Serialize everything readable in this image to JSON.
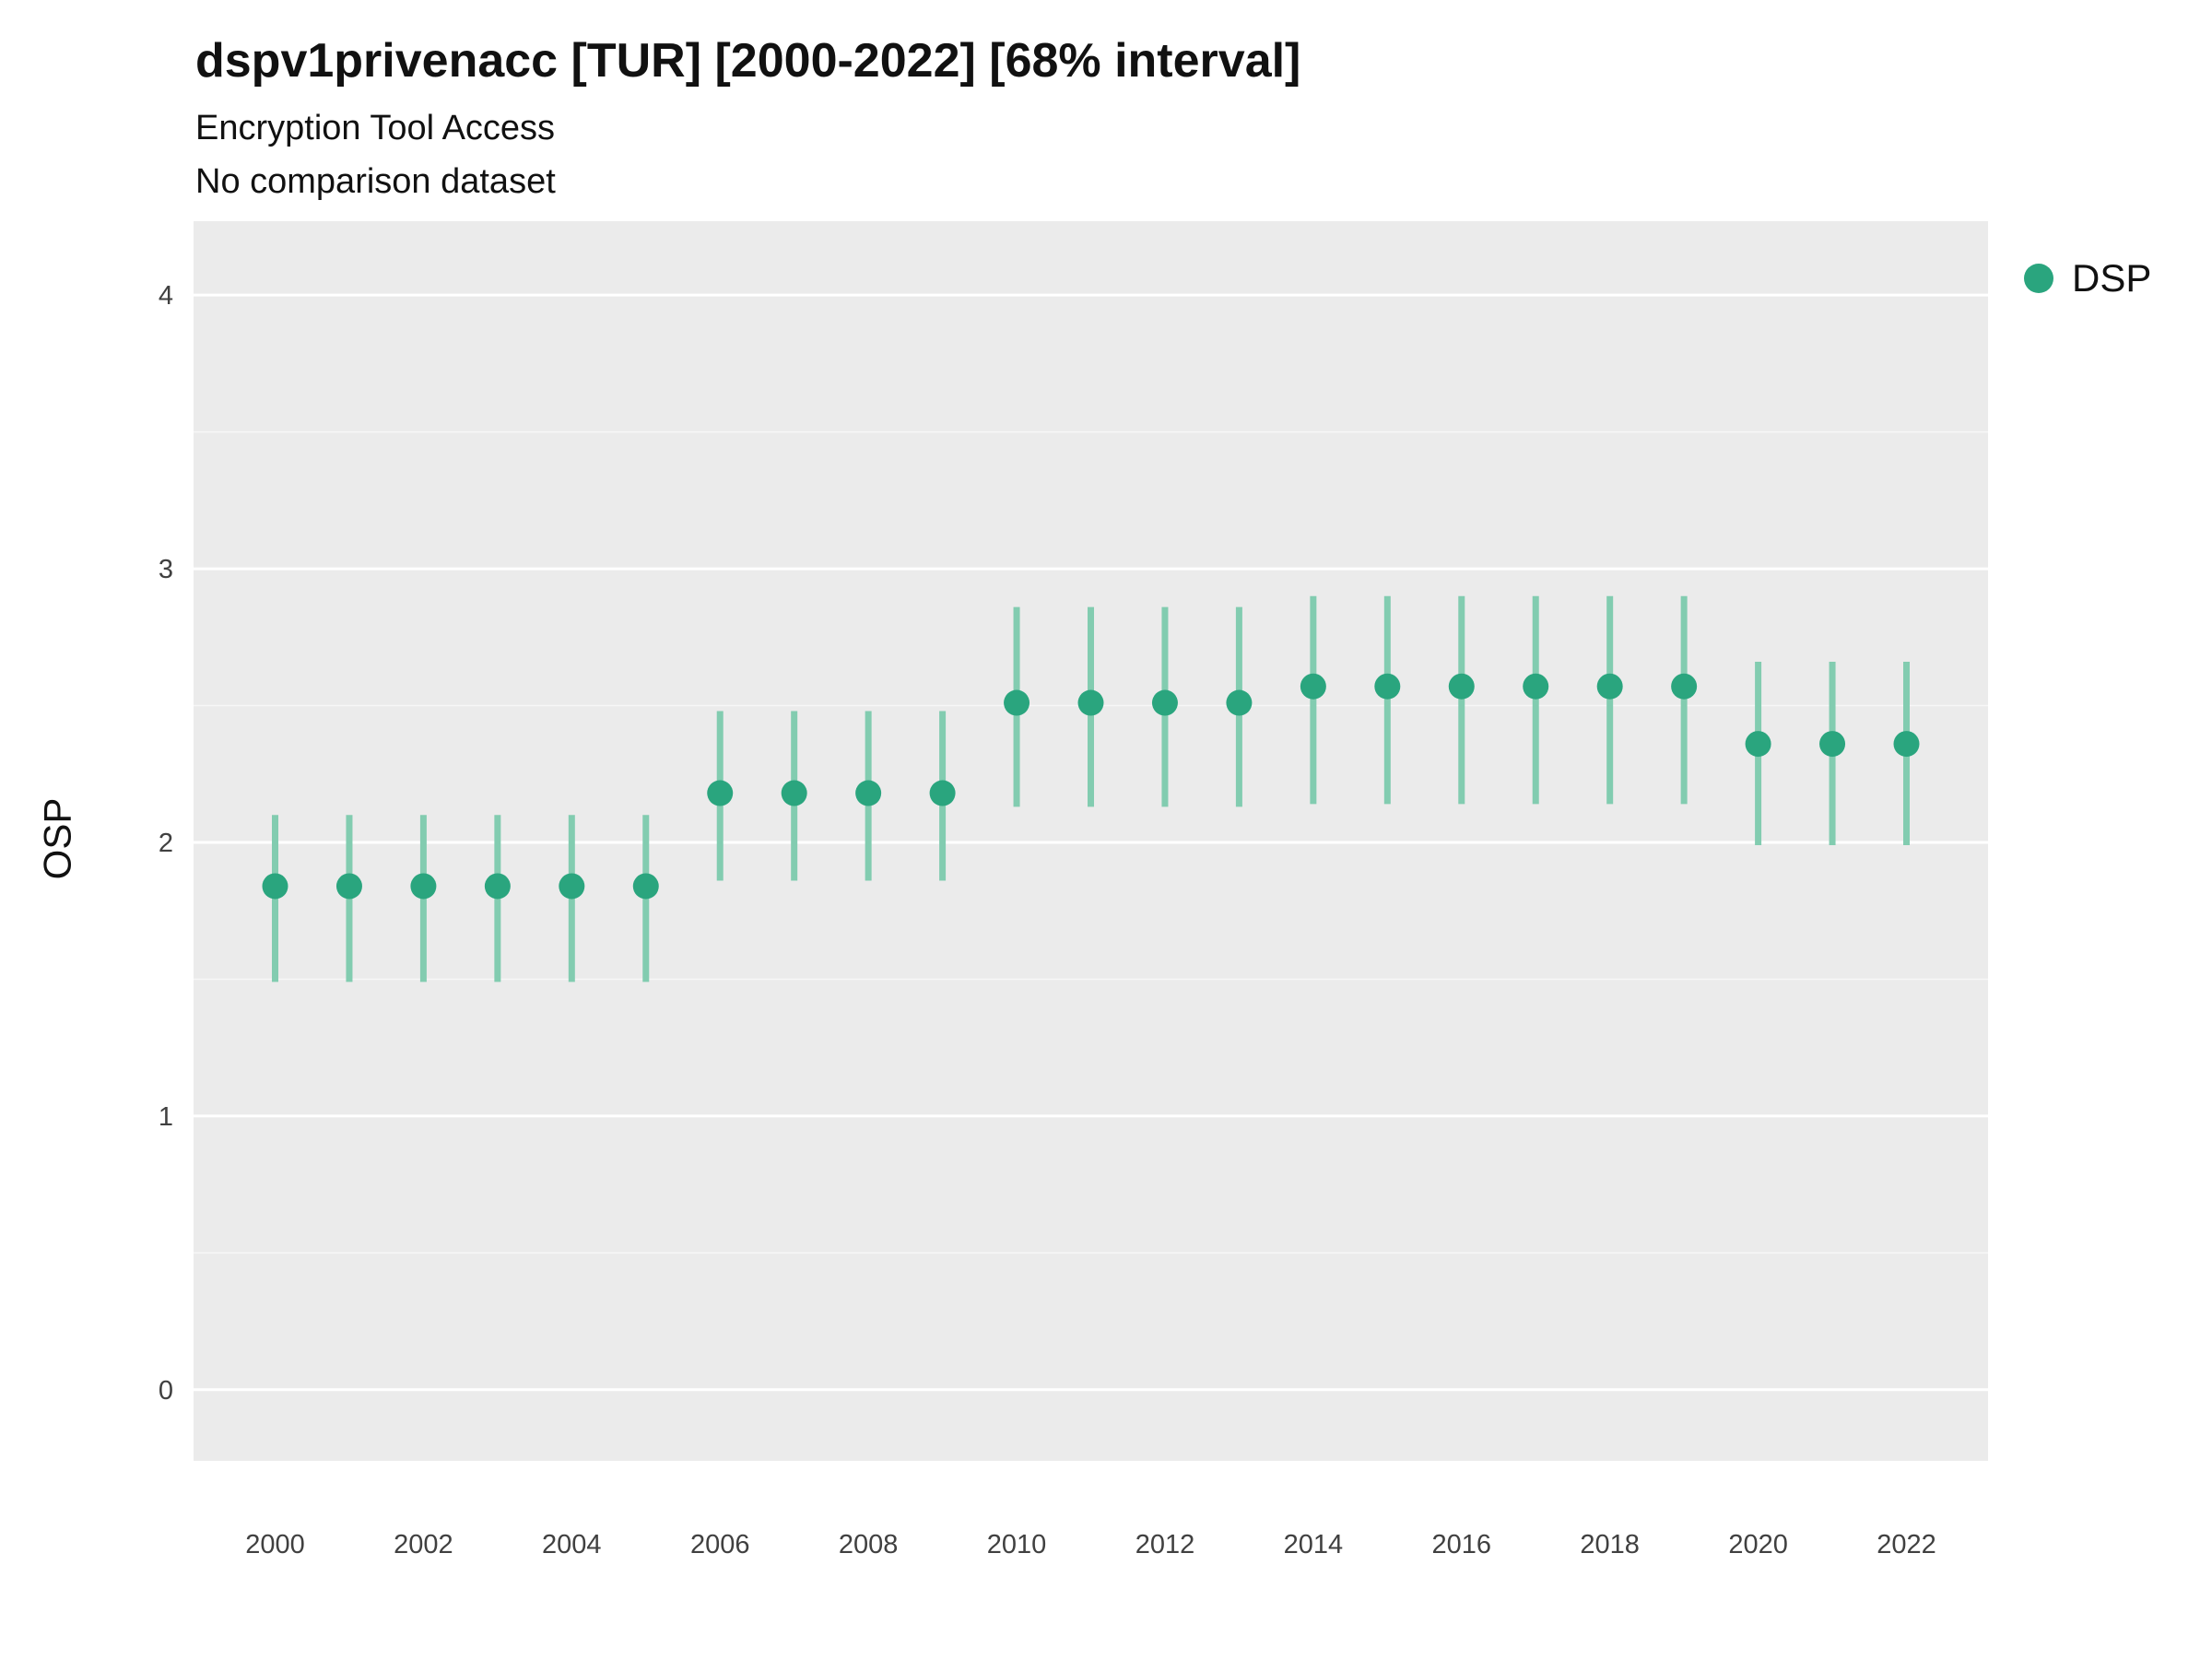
{
  "title": "dspv1privenacc [TUR] [2000-2022] [68% interval]",
  "subtitle": "Encryption Tool Access",
  "subtitle2": "No comparison dataset",
  "y_axis_label": "OSP",
  "legend": {
    "position": "right",
    "items": [
      {
        "label": "DSP",
        "color": "#2aa57e"
      }
    ]
  },
  "chart_data": {
    "type": "scatter",
    "title": "dspv1privenacc [TUR] [2000-2022] [68% interval]",
    "subtitle": "Encryption Tool Access",
    "note": "No comparison dataset",
    "xlabel": "",
    "ylabel": "OSP",
    "ylim": [
      -0.26,
      4.27
    ],
    "xlim": [
      1998.9,
      2023.1
    ],
    "grid": true,
    "legend_position": "right",
    "plot_bg": "#ebebeb",
    "grid_color": "#ffffff",
    "point_color": "#2aa57e",
    "interval_color": "#82ccb0",
    "yticks": [
      0,
      1,
      2,
      3,
      4
    ],
    "xticks": [
      2000,
      2002,
      2004,
      2006,
      2008,
      2010,
      2012,
      2014,
      2016,
      2018,
      2020,
      2022
    ],
    "interval_label": "68% interval",
    "series": [
      {
        "name": "DSP",
        "x": [
          2000,
          2001,
          2002,
          2003,
          2004,
          2005,
          2006,
          2007,
          2008,
          2009,
          2010,
          2011,
          2012,
          2013,
          2014,
          2015,
          2016,
          2017,
          2018,
          2019,
          2020,
          2021,
          2022
        ],
        "y": [
          1.84,
          1.84,
          1.84,
          1.84,
          1.84,
          1.84,
          2.18,
          2.18,
          2.18,
          2.18,
          2.51,
          2.51,
          2.51,
          2.51,
          2.57,
          2.57,
          2.57,
          2.57,
          2.57,
          2.57,
          2.36,
          2.36,
          2.36
        ],
        "lower": [
          1.49,
          1.49,
          1.49,
          1.49,
          1.49,
          1.49,
          1.86,
          1.86,
          1.86,
          1.86,
          2.13,
          2.13,
          2.13,
          2.13,
          2.14,
          2.14,
          2.14,
          2.14,
          2.14,
          2.14,
          1.99,
          1.99,
          1.99
        ],
        "upper": [
          2.1,
          2.1,
          2.1,
          2.1,
          2.1,
          2.1,
          2.48,
          2.48,
          2.48,
          2.48,
          2.86,
          2.86,
          2.86,
          2.86,
          2.9,
          2.9,
          2.9,
          2.9,
          2.9,
          2.9,
          2.66,
          2.66,
          2.66
        ]
      }
    ]
  }
}
